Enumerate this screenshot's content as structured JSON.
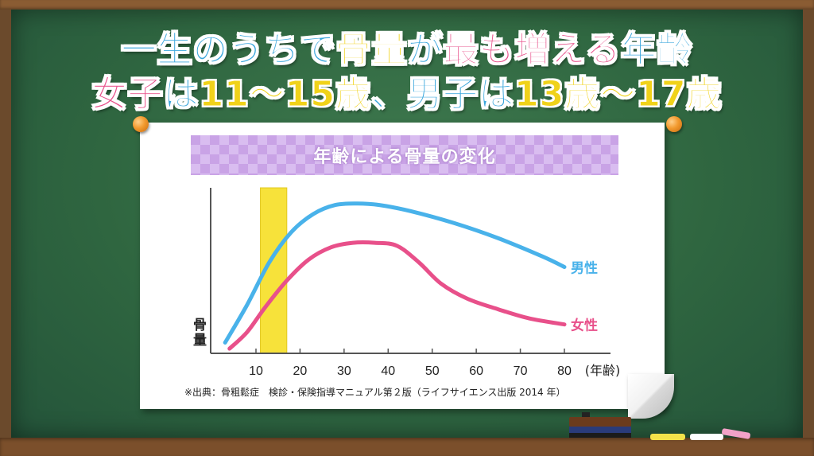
{
  "headline": {
    "line1": [
      {
        "text": "一生のうちで",
        "color": "#3aa6dc"
      },
      {
        "text": "骨量",
        "color": "#f0d21a"
      },
      {
        "text": "が",
        "color": "#3aa6dc"
      },
      {
        "text": "最も増える",
        "color": "#e8508a"
      },
      {
        "text": "年齢",
        "color": "#3aa6dc"
      }
    ],
    "line2": [
      {
        "text": "女子",
        "color": "#e8508a"
      },
      {
        "text": "は",
        "color": "#3aa6dc"
      },
      {
        "text": "11〜15歳",
        "color": "#f0d21a"
      },
      {
        "text": "、",
        "color": "#3aa6dc"
      },
      {
        "text": "男子",
        "color": "#3aa6dc"
      },
      {
        "text": "は",
        "color": "#3aa6dc"
      },
      {
        "text": "13歳〜17歳",
        "color": "#f0d21a"
      }
    ]
  },
  "chart_data": {
    "type": "line",
    "title": "年齢による骨量の変化",
    "xlabel": "(年齢)",
    "ylabel": "骨量",
    "x_ticks": [
      10,
      20,
      30,
      40,
      50,
      60,
      70,
      80
    ],
    "xlim": [
      0,
      85
    ],
    "ylim": [
      0,
      100
    ],
    "y_ticks_shown": false,
    "highlight": {
      "x_from": 11,
      "x_to": 17,
      "color": "#f7e23a"
    },
    "series": [
      {
        "name": "男性",
        "color": "#49b2ea",
        "points": [
          [
            3,
            5
          ],
          [
            8,
            30
          ],
          [
            13,
            58
          ],
          [
            18,
            78
          ],
          [
            23,
            90
          ],
          [
            28,
            96
          ],
          [
            33,
            97
          ],
          [
            38,
            96
          ],
          [
            45,
            92
          ],
          [
            55,
            84
          ],
          [
            65,
            74
          ],
          [
            75,
            62
          ],
          [
            80,
            55
          ]
        ]
      },
      {
        "name": "女性",
        "color": "#e8508a",
        "points": [
          [
            4,
            1
          ],
          [
            8,
            12
          ],
          [
            12,
            28
          ],
          [
            17,
            46
          ],
          [
            22,
            60
          ],
          [
            27,
            68
          ],
          [
            32,
            71
          ],
          [
            37,
            71
          ],
          [
            42,
            69
          ],
          [
            47,
            58
          ],
          [
            52,
            44
          ],
          [
            58,
            34
          ],
          [
            65,
            27
          ],
          [
            72,
            21
          ],
          [
            80,
            17
          ]
        ]
      }
    ],
    "grid": false,
    "source": "※出典：骨粗鬆症　検診・保険指導マニュアル第２版（ライフサイエンス出版 2014 年）"
  }
}
